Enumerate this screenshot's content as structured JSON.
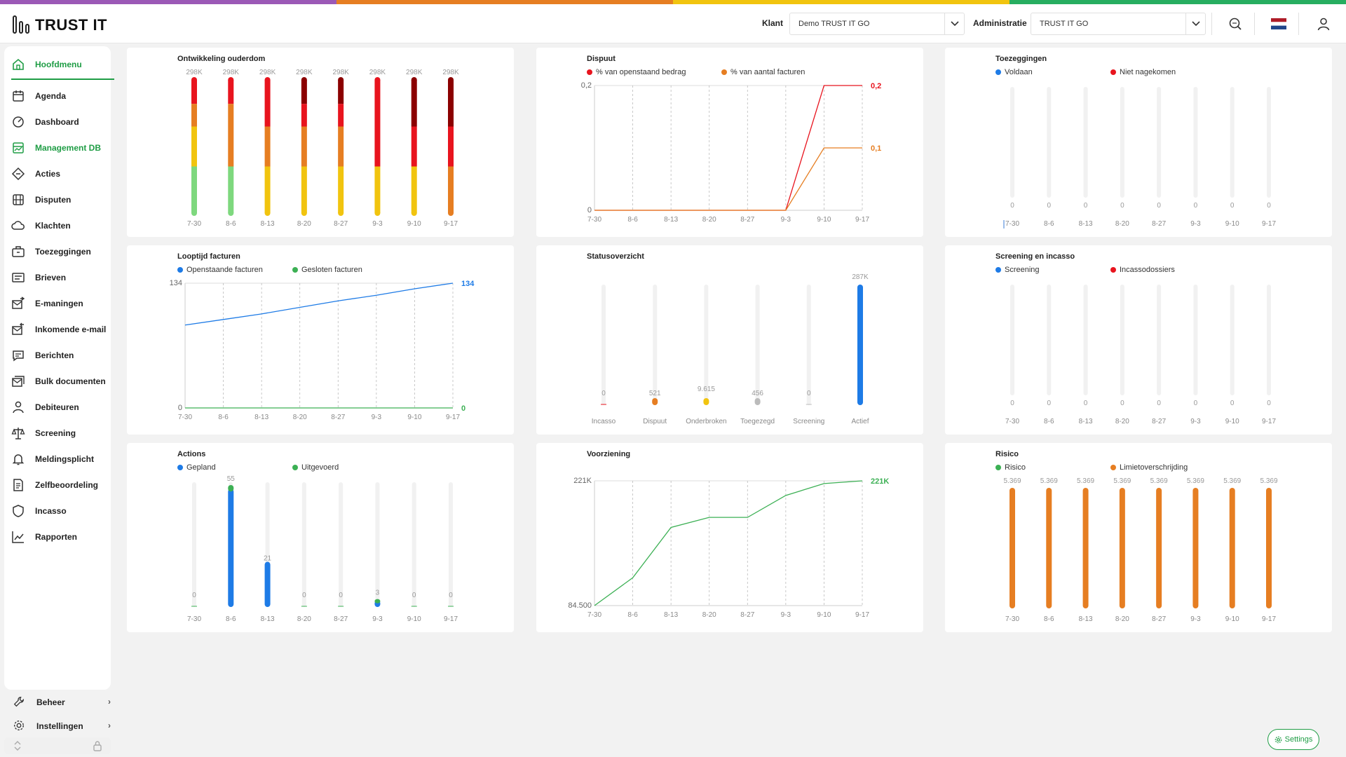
{
  "brand": {
    "logo_text": "TRUST IT",
    "strip_colors": [
      "#9b59b6",
      "#e67e22",
      "#f1c40f",
      "#27ae60"
    ]
  },
  "header": {
    "klant_label": "Klant",
    "klant_value": "Demo TRUST IT GO",
    "admin_label": "Administratie",
    "admin_value": "TRUST IT GO"
  },
  "sidebar": {
    "items": [
      {
        "label": "Hoofdmenu",
        "icon": "home-icon",
        "active": true
      },
      {
        "label": "Agenda",
        "icon": "calendar-icon"
      },
      {
        "label": "Dashboard",
        "icon": "gauge-icon"
      },
      {
        "label": "Management DB",
        "icon": "chart-board-icon",
        "active": true
      },
      {
        "label": "Acties",
        "icon": "diamond-icon"
      },
      {
        "label": "Disputen",
        "icon": "gavel-icon"
      },
      {
        "label": "Klachten",
        "icon": "cloud-icon"
      },
      {
        "label": "Toezeggingen",
        "icon": "briefcase-icon"
      },
      {
        "label": "Brieven",
        "icon": "letter-icon"
      },
      {
        "label": "E-maningen",
        "icon": "mail-send-icon"
      },
      {
        "label": "Inkomende e-mail",
        "icon": "mail-in-icon"
      },
      {
        "label": "Berichten",
        "icon": "chat-icon"
      },
      {
        "label": "Bulk documenten",
        "icon": "mail-stack-icon"
      },
      {
        "label": "Debiteuren",
        "icon": "person-icon"
      },
      {
        "label": "Screening",
        "icon": "scale-icon"
      },
      {
        "label": "Meldingsplicht",
        "icon": "bell-icon"
      },
      {
        "label": "Zelfbeoordeling",
        "icon": "document-icon"
      },
      {
        "label": "Incasso",
        "icon": "shield-icon"
      },
      {
        "label": "Rapporten",
        "icon": "line-chart-icon"
      }
    ],
    "bottom": [
      {
        "label": "Beheer",
        "icon": "wrench-icon"
      },
      {
        "label": "Instellingen",
        "icon": "gear-icon"
      }
    ]
  },
  "settings_button": "Settings",
  "chart_data": [
    {
      "id": "ouderdom",
      "type": "bar",
      "title": "Ontwikkeling ouderdom",
      "categories": [
        "7-30",
        "8-6",
        "8-13",
        "8-20",
        "8-27",
        "9-3",
        "9-10",
        "9-17"
      ],
      "top_labels": [
        "298K",
        "298K",
        "298K",
        "298K",
        "298K",
        "298K",
        "298K",
        "298K"
      ],
      "stacked_segments_pct": [
        [
          {
            "color": "#e8141e",
            "v": 18
          },
          {
            "color": "#e67e22",
            "v": 17
          },
          {
            "color": "#f1c40f",
            "v": 30
          },
          {
            "color": "#7ed87e",
            "v": 35
          }
        ],
        [
          {
            "color": "#e8141e",
            "v": 18
          },
          {
            "color": "#e67e22",
            "v": 47
          },
          {
            "color": "#7ed87e",
            "v": 35
          }
        ],
        [
          {
            "color": "#e8141e",
            "v": 35
          },
          {
            "color": "#e67e22",
            "v": 30
          },
          {
            "color": "#f1c40f",
            "v": 35
          }
        ],
        [
          {
            "color": "#8b0000",
            "v": 18
          },
          {
            "color": "#e8141e",
            "v": 17
          },
          {
            "color": "#e67e22",
            "v": 30
          },
          {
            "color": "#f1c40f",
            "v": 35
          }
        ],
        [
          {
            "color": "#8b0000",
            "v": 18
          },
          {
            "color": "#e8141e",
            "v": 17
          },
          {
            "color": "#e67e22",
            "v": 30
          },
          {
            "color": "#f1c40f",
            "v": 35
          }
        ],
        [
          {
            "color": "#e8141e",
            "v": 65
          },
          {
            "color": "#f1c40f",
            "v": 35
          }
        ],
        [
          {
            "color": "#8b0000",
            "v": 35
          },
          {
            "color": "#e8141e",
            "v": 30
          },
          {
            "color": "#f1c40f",
            "v": 35
          }
        ],
        [
          {
            "color": "#8b0000",
            "v": 35
          },
          {
            "color": "#e8141e",
            "v": 30
          },
          {
            "color": "#e67e22",
            "v": 35
          }
        ]
      ]
    },
    {
      "id": "dispuut",
      "type": "line",
      "title": "Dispuut",
      "categories": [
        "7-30",
        "8-6",
        "8-13",
        "8-20",
        "8-27",
        "9-3",
        "9-10",
        "9-17"
      ],
      "ylim": [
        0,
        0.2
      ],
      "y_ticks": [
        "0",
        "0,2"
      ],
      "series": [
        {
          "name": "% van openstaand bedrag",
          "color": "#e8141e",
          "values": [
            0,
            0,
            0,
            0,
            0,
            0,
            0.2,
            0.2
          ],
          "end_label": "0,2"
        },
        {
          "name": "% van aantal facturen",
          "color": "#e67e22",
          "values": [
            0,
            0,
            0,
            0,
            0,
            0,
            0.1,
            0.1
          ],
          "end_label": "0,1"
        }
      ]
    },
    {
      "id": "toezeggingen",
      "type": "bar",
      "title": "Toezeggingen",
      "categories": [
        "7-30",
        "8-6",
        "8-13",
        "8-20",
        "8-27",
        "9-3",
        "9-10",
        "9-17"
      ],
      "series": [
        {
          "name": "Voldaan",
          "color": "#1e7be6"
        },
        {
          "name": "Niet nagekomen",
          "color": "#e8141e"
        }
      ],
      "values": [
        0,
        0,
        0,
        0,
        0,
        0,
        0,
        0
      ],
      "value_labels": [
        "0",
        "0",
        "0",
        "0",
        "0",
        "0",
        "0",
        "0"
      ]
    },
    {
      "id": "looptijd",
      "type": "line",
      "title": "Looptijd facturen",
      "categories": [
        "7-30",
        "8-6",
        "8-13",
        "8-20",
        "8-27",
        "9-3",
        "9-10",
        "9-17"
      ],
      "ylim": [
        0,
        134
      ],
      "y_ticks": [
        "0",
        "134"
      ],
      "series": [
        {
          "name": "Openstaande facturen",
          "color": "#1e7be6",
          "values": [
            89,
            95,
            101,
            108,
            115,
            121,
            128,
            134
          ],
          "end_label": "134"
        },
        {
          "name": "Gesloten facturen",
          "color": "#3cb054",
          "values": [
            0,
            0,
            0,
            0,
            0,
            0,
            0,
            0
          ],
          "end_label": "0"
        }
      ]
    },
    {
      "id": "status",
      "type": "bar",
      "title": "Statusoverzicht",
      "categories": [
        "Incasso",
        "Dispuut",
        "Onderbroken",
        "Toegezegd",
        "Screening",
        "Actief"
      ],
      "values": [
        0,
        521,
        9615,
        456,
        0,
        287000
      ],
      "value_labels": [
        "0",
        "521",
        "9.615",
        "456",
        "0",
        "287K"
      ],
      "colors": [
        "#e8141e",
        "#e67e22",
        "#f1c40f",
        "#bbbbbb",
        "#bbbbbb",
        "#1e7be6"
      ],
      "ylim": [
        0,
        287000
      ]
    },
    {
      "id": "screening",
      "type": "bar",
      "title": "Screening en incasso",
      "categories": [
        "7-30",
        "8-6",
        "8-13",
        "8-20",
        "8-27",
        "9-3",
        "9-10",
        "9-17"
      ],
      "series": [
        {
          "name": "Screening",
          "color": "#1e7be6"
        },
        {
          "name": "Incassodossiers",
          "color": "#e8141e"
        }
      ],
      "values": [
        0,
        0,
        0,
        0,
        0,
        0,
        0,
        0
      ],
      "value_labels": [
        "0",
        "0",
        "0",
        "0",
        "0",
        "0",
        "0",
        "0"
      ]
    },
    {
      "id": "actions",
      "type": "bar",
      "title": "Actions",
      "categories": [
        "7-30",
        "8-6",
        "8-13",
        "8-20",
        "8-27",
        "9-3",
        "9-10",
        "9-17"
      ],
      "series": [
        {
          "name": "Gepland",
          "color": "#1e7be6",
          "values": [
            0,
            55,
            21,
            0,
            0,
            3,
            0,
            0
          ]
        },
        {
          "name": "Uitgevoerd",
          "color": "#3cb054",
          "values": [
            0,
            3,
            0,
            0,
            0,
            2,
            0,
            0
          ]
        }
      ],
      "value_labels": [
        "0",
        "55",
        "21",
        "0",
        "0",
        "3",
        "0",
        "0"
      ],
      "ylim": [
        0,
        58
      ]
    },
    {
      "id": "voorziening",
      "type": "line",
      "title": "Voorziening",
      "categories": [
        "7-30",
        "8-6",
        "8-13",
        "8-20",
        "8-27",
        "9-3",
        "9-10",
        "9-17"
      ],
      "ylim": [
        84500,
        221000
      ],
      "y_ticks": [
        "84.500",
        "221K"
      ],
      "series": [
        {
          "name": "Voorziening",
          "color": "#3cb054",
          "values": [
            84500,
            115000,
            170000,
            181000,
            181000,
            205000,
            218000,
            221000
          ],
          "end_label": "221K"
        }
      ]
    },
    {
      "id": "risico",
      "type": "bar",
      "title": "Risico",
      "categories": [
        "7-30",
        "8-6",
        "8-13",
        "8-20",
        "8-27",
        "9-3",
        "9-10",
        "9-17"
      ],
      "series": [
        {
          "name": "Risico",
          "color": "#3cb054"
        },
        {
          "name": "Limietoverschrijding",
          "color": "#e67e22"
        }
      ],
      "values": [
        5369,
        5369,
        5369,
        5369,
        5369,
        5369,
        5369,
        5369
      ],
      "value_labels": [
        "5.369",
        "5.369",
        "5.369",
        "5.369",
        "5.369",
        "5.369",
        "5.369",
        "5.369"
      ],
      "bar_color": "#e67e22",
      "ylim": [
        0,
        5369
      ]
    }
  ]
}
